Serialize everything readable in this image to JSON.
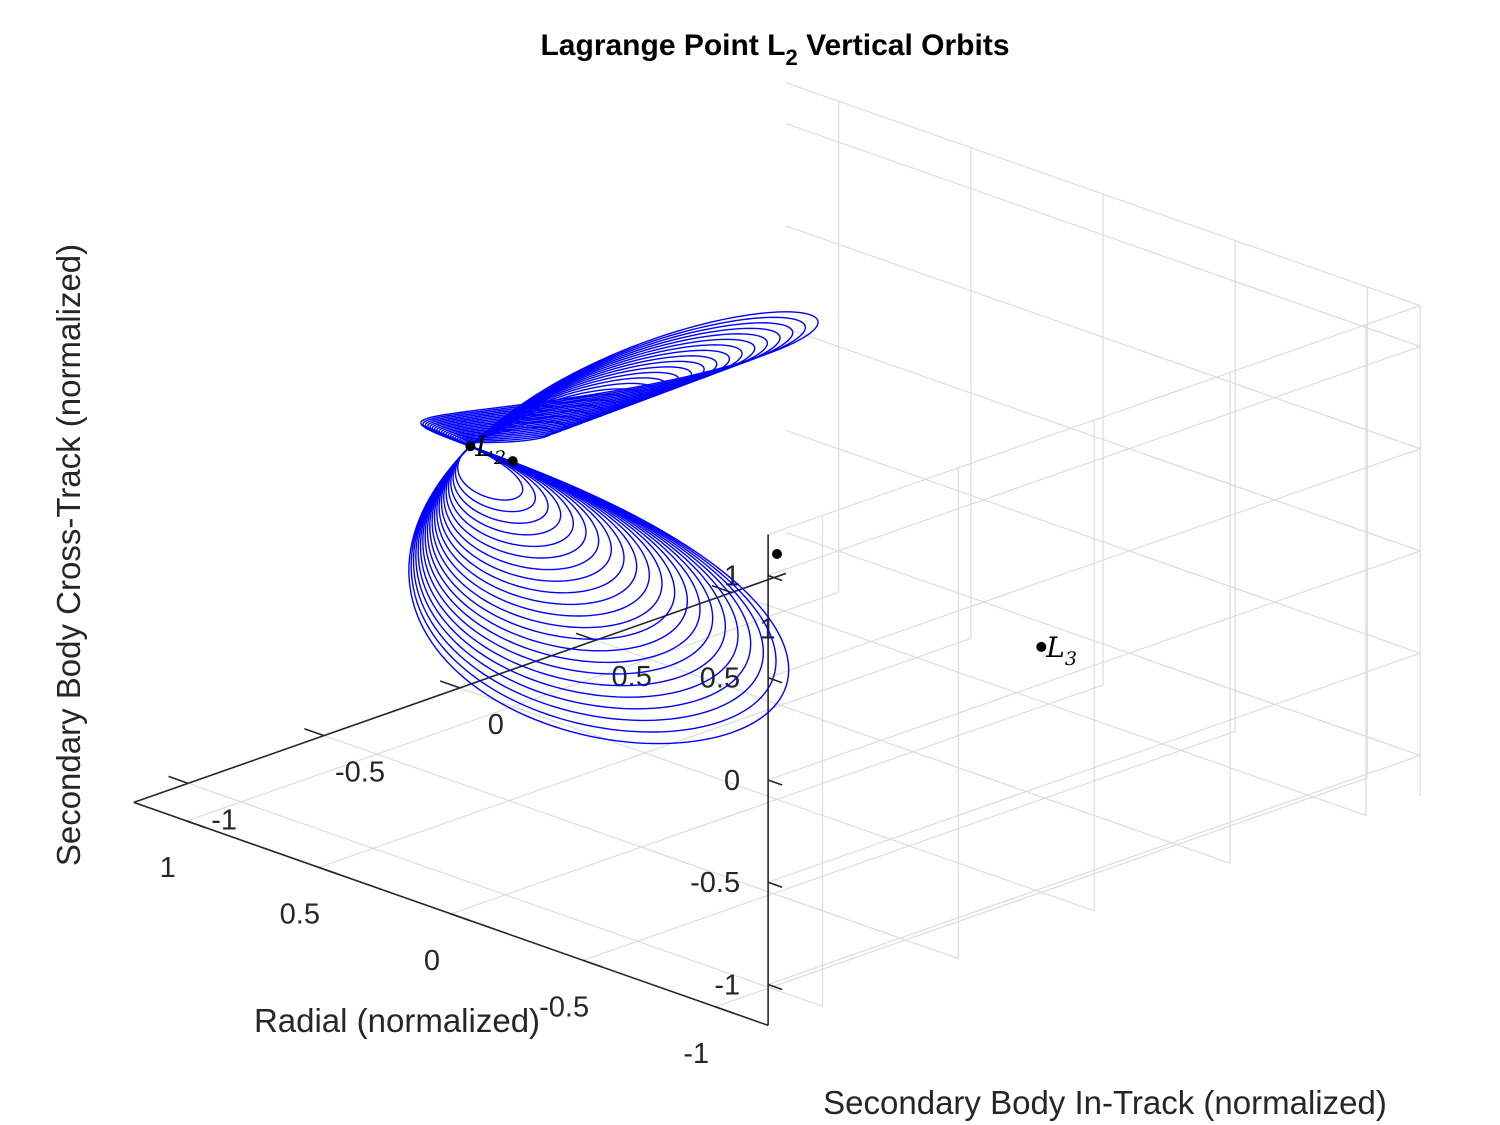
{
  "chart_data": {
    "type": "line3d",
    "title": "Lagrange Point L",
    "title_subscript": "2",
    "title_suffix": " Vertical Orbits",
    "xlabel": "Radial (normalized)",
    "ylabel": "Secondary Body In-Track (normalized)",
    "zlabel": "Secondary Body Cross-Track (normalized)",
    "xlim": [
      -1.2,
      1.2
    ],
    "ylim": [
      -1.2,
      1.2
    ],
    "zlim": [
      -1.2,
      1.2
    ],
    "x_ticks": [
      "-1",
      "-0.5",
      "0",
      "0.5",
      "1"
    ],
    "y_ticks": [
      "-1",
      "-0.5",
      "0",
      "0.5",
      "1"
    ],
    "z_ticks": [
      "-1",
      "-0.5",
      "0",
      "0.5",
      "1"
    ],
    "grid": true,
    "line_color": "#0000ff",
    "orbit_family": {
      "name": "L2 vertical orbits",
      "count": 22,
      "anchor_point": "L2",
      "max_amplitude_y": 1.0,
      "max_amplitude_z": 0.95
    },
    "points": [
      {
        "name": "L3",
        "label": "L",
        "sub": "3",
        "x": -1.0,
        "y": 0.0,
        "z": 0.0
      },
      {
        "name": "primary",
        "label": "",
        "sub": "",
        "x": 0.0,
        "y": 0.0,
        "z": 0.0
      },
      {
        "name": "secondary",
        "label": "",
        "sub": "",
        "x": 1.0,
        "y": 0.0,
        "z": 0.0
      },
      {
        "name": "L2",
        "label": "L",
        "sub": "2",
        "x": 1.16,
        "y": 0.0,
        "z": 0.0
      }
    ]
  }
}
